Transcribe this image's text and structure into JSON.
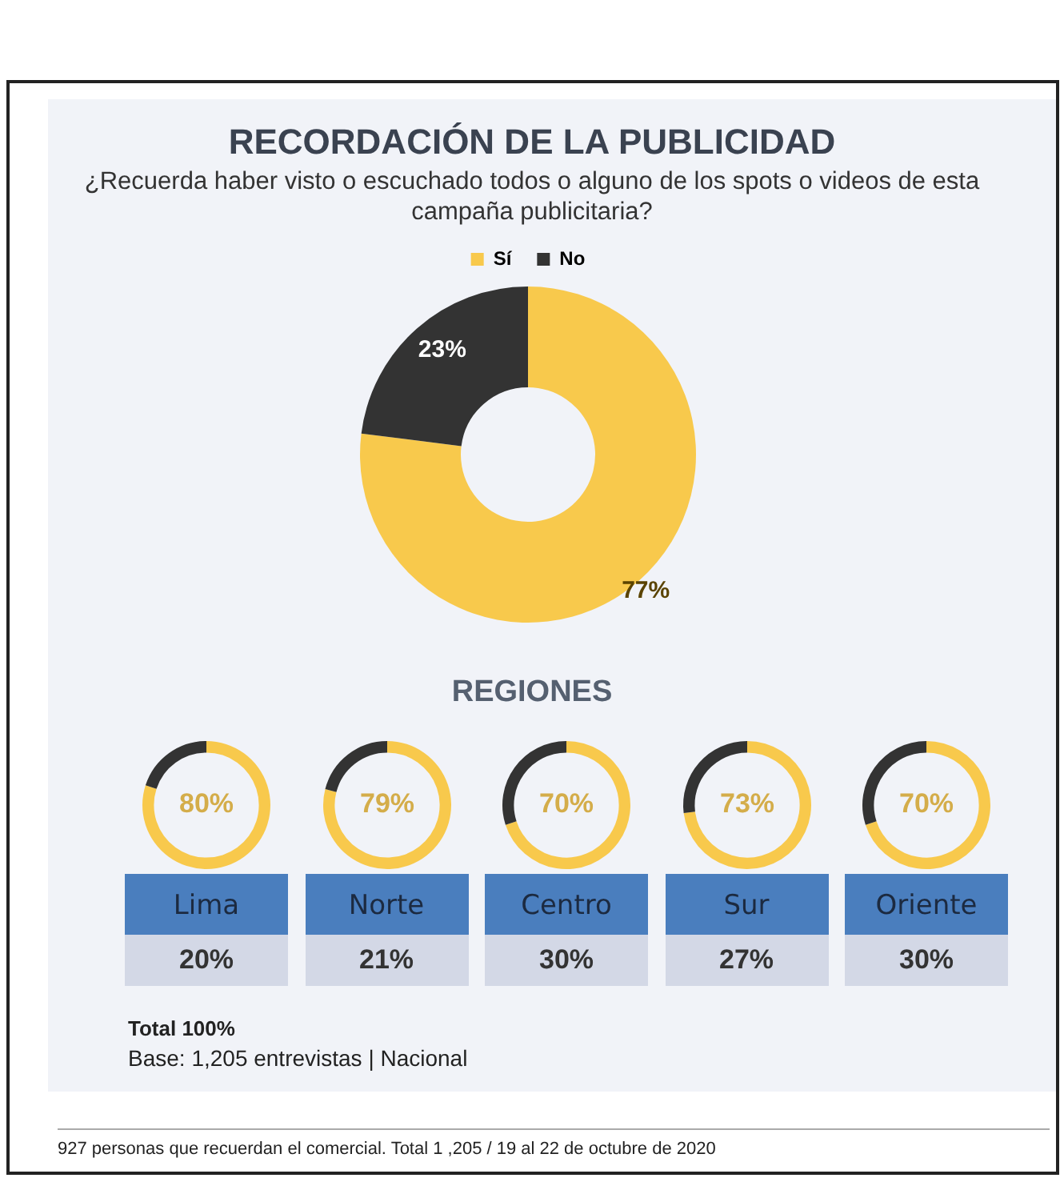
{
  "chart_data": [
    {
      "type": "donut",
      "title": "RECORDACIÓN DE LA PUBLICIDAD",
      "subtitle": "¿Recuerda haber visto o escuchado todos o alguno de los spots o videos de esta campaña publicitaria?",
      "categories": [
        "Sí",
        "No"
      ],
      "values": [
        77,
        23
      ],
      "colors": [
        "#f8c94c",
        "#333333"
      ],
      "value_labels": [
        "77%",
        "23%"
      ],
      "legend": "top",
      "annotations": [
        "Total 100%",
        "Base: 1,205 entrevistas | Nacional",
        "927 personas que recuerdan el comercial. Total 1 ,205 / 19 al 22 de octubre de 2020"
      ]
    },
    {
      "type": "other",
      "title": "REGIONES"
    },
    {
      "type": "donut",
      "title": "Lima",
      "categories": [
        null,
        null
      ],
      "values": [
        80,
        20
      ],
      "colors": [
        "#f8c94c",
        "#333333"
      ],
      "value_labels": [
        "80%",
        null
      ],
      "annotations": [
        "20%"
      ]
    },
    {
      "type": "donut",
      "title": "Norte",
      "categories": [
        null,
        null
      ],
      "values": [
        79,
        21
      ],
      "colors": [
        "#f8c94c",
        "#333333"
      ],
      "value_labels": [
        "79%",
        null
      ],
      "annotations": [
        "21%"
      ]
    },
    {
      "type": "donut",
      "title": "Centro",
      "categories": [
        null,
        null
      ],
      "values": [
        70,
        30
      ],
      "colors": [
        "#f8c94c",
        "#333333"
      ],
      "value_labels": [
        "70%",
        null
      ],
      "annotations": [
        "30%"
      ]
    },
    {
      "type": "donut",
      "title": "Sur",
      "categories": [
        null,
        null
      ],
      "values": [
        73,
        27
      ],
      "colors": [
        "#f8c94c",
        "#333333"
      ],
      "value_labels": [
        "73%",
        null
      ],
      "annotations": [
        "27%"
      ]
    },
    {
      "type": "donut",
      "title": "Oriente",
      "categories": [
        null,
        null
      ],
      "values": [
        70,
        30
      ],
      "colors": [
        "#f8c94c",
        "#333333"
      ],
      "value_labels": [
        "70%",
        null
      ],
      "annotations": [
        "30%"
      ]
    }
  ]
}
